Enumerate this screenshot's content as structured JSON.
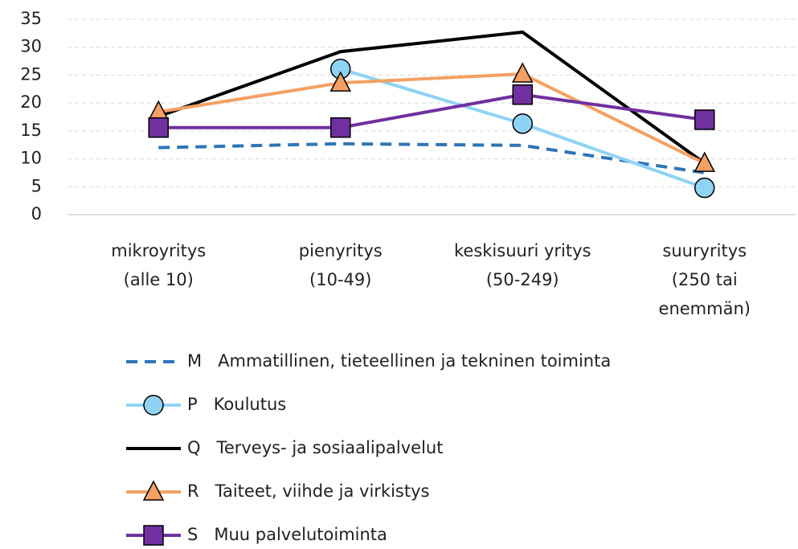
{
  "chart_data": {
    "type": "line",
    "categories": [
      [
        "mikroyritys",
        "(alle 10)"
      ],
      [
        "pienyritys",
        "(10-49)"
      ],
      [
        "keskisuuri yritys",
        "(50-249)"
      ],
      [
        "suuryritys",
        "(250 tai",
        "enemmän)"
      ]
    ],
    "series": [
      {
        "name": "M   Ammatillinen, tieteellinen ja tekninen toiminta",
        "color": "#2e75b6",
        "dash": true,
        "marker": "none",
        "values": [
          12,
          12.7,
          12.4,
          7.5
        ]
      },
      {
        "name": "P   Koulutus",
        "color": "#8fd3f4",
        "dash": false,
        "marker": "circle",
        "values": [
          null,
          26.1,
          16.3,
          4.8
        ]
      },
      {
        "name": "Q   Terveys- ja sosiaalipalvelut",
        "color": "#000000",
        "dash": false,
        "marker": "none",
        "values": [
          17.6,
          29.2,
          32.7,
          9.2
        ]
      },
      {
        "name": "R   Taiteet, viihde ja virkistys",
        "color": "#f4a064",
        "dash": false,
        "marker": "triangle",
        "values": [
          18.4,
          23.6,
          25.2,
          9.2
        ]
      },
      {
        "name": "S   Muu palvelutoiminta",
        "color": "#7030a0",
        "dash": false,
        "marker": "square",
        "values": [
          15.6,
          15.6,
          21.5,
          17
        ]
      }
    ],
    "ylim": [
      0,
      35
    ],
    "yticks": [
      0,
      5,
      10,
      15,
      20,
      25,
      30,
      35
    ],
    "grid": true,
    "legend": "bottom"
  }
}
